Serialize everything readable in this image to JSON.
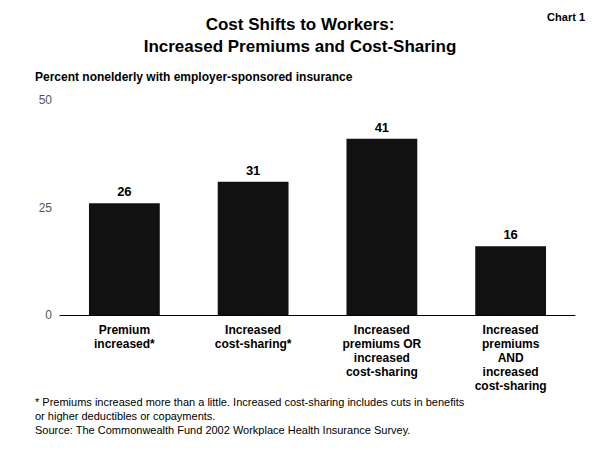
{
  "chart_data": {
    "type": "bar",
    "title": "Cost Shifts to Workers:\nIncreased Premiums and Cost-Sharing",
    "subtitle": "Percent nonelderly with employer-sponsored insurance",
    "annotations": [
      "Chart 1",
      "* Premiums increased more than a little. Increased cost-sharing includes cuts in benefits",
      "or higher deductibles or copayments.",
      "Source: The Commonwealth Fund 2002 Workplace Health Insurance Survey."
    ],
    "categories": [
      "Premium\nincreased*",
      "Increased\ncost-sharing*",
      "Increased\npremiums OR\nincreased\ncost-sharing",
      "Increased\npremiums\nAND\nincreased\ncost-sharing"
    ],
    "values": [
      26,
      31,
      41,
      16
    ],
    "color": "#111111",
    "ylim": [
      0,
      50
    ],
    "yticks": [
      0,
      25,
      50
    ],
    "grid": false,
    "data_labels": true
  }
}
